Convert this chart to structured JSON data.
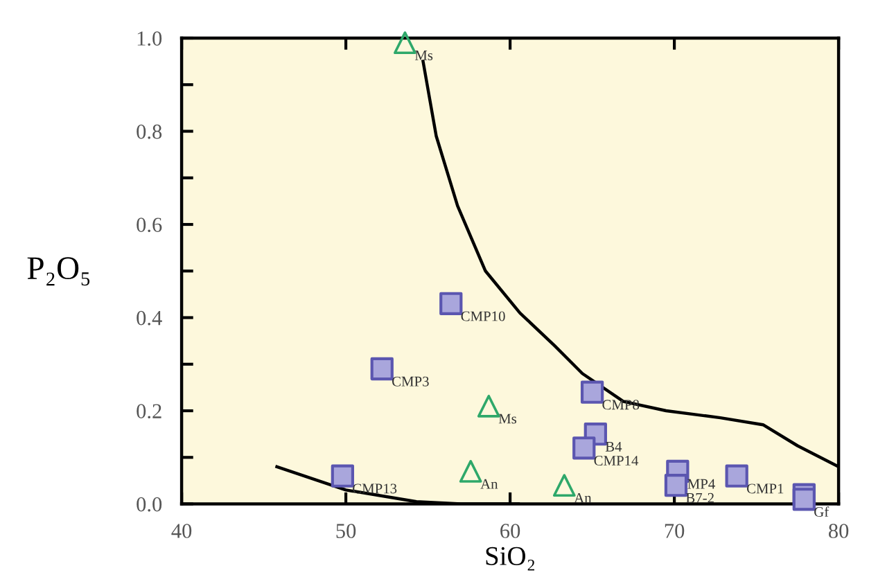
{
  "chart_data": {
    "type": "scatter",
    "xlabel": "SiO₂",
    "ylabel": "P₂O₅",
    "xlim": [
      40,
      80
    ],
    "ylim": [
      0,
      1.0
    ],
    "xticks": [
      40,
      50,
      60,
      70,
      80
    ],
    "yticks": [
      {
        "value": 0,
        "label": "0.0"
      },
      {
        "value": 0.1,
        "label": null
      },
      {
        "value": 0.2,
        "label": "0.2"
      },
      {
        "value": 0.3,
        "label": null
      },
      {
        "value": 0.4,
        "label": "0.4"
      },
      {
        "value": 0.5,
        "label": null
      },
      {
        "value": 0.6,
        "label": "0.6"
      },
      {
        "value": 0.7,
        "label": null
      },
      {
        "value": 0.8,
        "label": "0.8"
      },
      {
        "value": 0.9,
        "label": null
      },
      {
        "value": 1.0,
        "label": "1.0"
      }
    ],
    "grid": false,
    "legend": false,
    "series": [
      {
        "marker": "square",
        "color": "#5b56b0",
        "x": [
          56.4,
          52.2,
          49.8,
          65.0,
          65.2,
          64.5,
          70.2,
          70.1,
          73.8,
          77.9,
          77.9
        ],
        "values": [
          0.43,
          0.29,
          0.06,
          0.24,
          0.15,
          0.12,
          0.07,
          0.04,
          0.06,
          0.02,
          0.01
        ]
      },
      {
        "marker": "triangle",
        "color": "#2ea86a",
        "x": [
          53.6,
          58.7,
          57.6,
          63.3
        ],
        "values": [
          0.99,
          0.21,
          0.07,
          0.04
        ]
      },
      {
        "type": "line",
        "color": "#000000",
        "x": [
          54.7,
          55.5,
          56.8,
          58.5,
          60.6,
          62.7,
          64.4,
          66.9,
          69.5,
          72.8,
          75.4,
          77.5,
          80.0
        ],
        "values": [
          0.95,
          0.79,
          0.64,
          0.5,
          0.41,
          0.34,
          0.28,
          0.22,
          0.2,
          0.185,
          0.17,
          0.125,
          0.08
        ]
      },
      {
        "type": "line",
        "color": "#000000",
        "x": [
          45.8,
          50.0,
          54.3,
          57.0,
          60.5
        ],
        "values": [
          0.08,
          0.03,
          0.005,
          0.0,
          0.0
        ]
      }
    ],
    "annotations": [
      {
        "text": "CMP10",
        "x": 56.4,
        "y": 0.43
      },
      {
        "text": "CMP3",
        "x": 52.2,
        "y": 0.29
      },
      {
        "text": "CMP13",
        "x": 49.8,
        "y": 0.06
      },
      {
        "text": "CMP8",
        "x": 65.0,
        "y": 0.24
      },
      {
        "text": "B4",
        "x": 65.2,
        "y": 0.15
      },
      {
        "text": "CMP14",
        "x": 64.5,
        "y": 0.12
      },
      {
        "text": "MP4",
        "x": 70.2,
        "y": 0.07
      },
      {
        "text": "B7-2",
        "x": 70.1,
        "y": 0.04
      },
      {
        "text": "CMP1",
        "x": 73.8,
        "y": 0.06
      },
      {
        "text": "Gf",
        "x": 77.9,
        "y": 0.01
      },
      {
        "text": "Ms",
        "x": 53.6,
        "y": 0.99
      },
      {
        "text": "Ms",
        "x": 58.7,
        "y": 0.21
      },
      {
        "text": "An",
        "x": 57.6,
        "y": 0.07
      },
      {
        "text": "An",
        "x": 63.3,
        "y": 0.04
      }
    ]
  }
}
